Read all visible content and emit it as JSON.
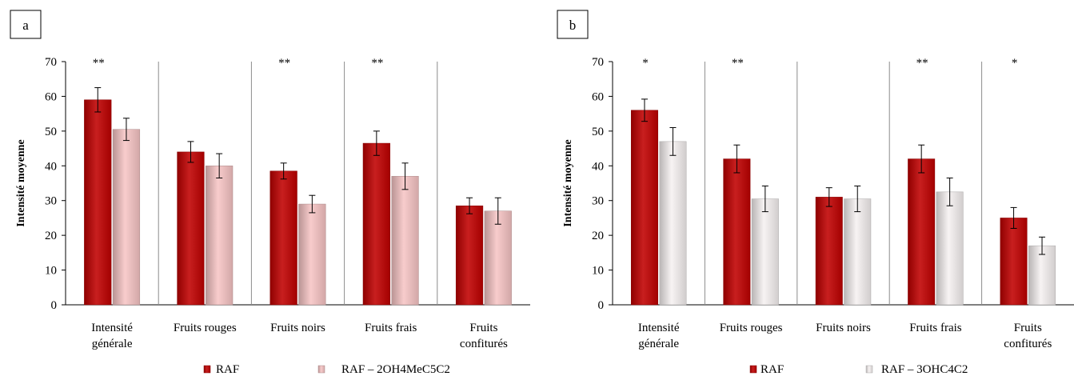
{
  "chart_data": [
    {
      "type": "bar",
      "panel_label": "a",
      "ylabel": "Intensité moyenne",
      "ylim": [
        0,
        70
      ],
      "yticks": [
        0,
        10,
        20,
        30,
        40,
        50,
        60,
        70
      ],
      "categories": [
        [
          "Intensité",
          "générale"
        ],
        [
          "Fruits rouges"
        ],
        [
          "Fruits noirs"
        ],
        [
          "Fruits frais"
        ],
        [
          "Fruits",
          "confiturés"
        ]
      ],
      "significance": [
        "**",
        "",
        "**",
        "**",
        ""
      ],
      "series": [
        {
          "name": "RAF",
          "color": "#c00000",
          "values": [
            59,
            44,
            38.5,
            46.5,
            28.5
          ],
          "errors": [
            3.5,
            3,
            2.3,
            3.5,
            2.3
          ]
        },
        {
          "name": "RAF – 2OH4MeC5C2",
          "color": "#f7c5c5",
          "values": [
            50.5,
            40,
            29,
            37,
            27
          ],
          "errors": [
            3.2,
            3.5,
            2.5,
            3.8,
            3.8
          ]
        }
      ],
      "legend_position": "bottom"
    },
    {
      "type": "bar",
      "panel_label": "b",
      "ylabel": "Intensité moyenne",
      "ylim": [
        0,
        70
      ],
      "yticks": [
        0,
        10,
        20,
        30,
        40,
        50,
        60,
        70
      ],
      "categories": [
        [
          "Intensité",
          "générale"
        ],
        [
          "Fruits rouges"
        ],
        [
          "Fruits noirs"
        ],
        [
          "Fruits frais"
        ],
        [
          "Fruits",
          "confiturés"
        ]
      ],
      "significance": [
        "*",
        "**",
        "",
        "**",
        "*"
      ],
      "series": [
        {
          "name": "RAF",
          "color": "#c00000",
          "values": [
            56,
            42,
            31,
            42,
            25
          ],
          "errors": [
            3.2,
            4,
            2.7,
            4,
            3
          ]
        },
        {
          "name": "RAF – 3OHC4C2",
          "color": "#f6f1f1",
          "values": [
            47,
            30.5,
            30.5,
            32.5,
            17
          ],
          "errors": [
            4,
            3.7,
            3.7,
            4,
            2.5
          ]
        }
      ],
      "legend_position": "bottom"
    }
  ]
}
